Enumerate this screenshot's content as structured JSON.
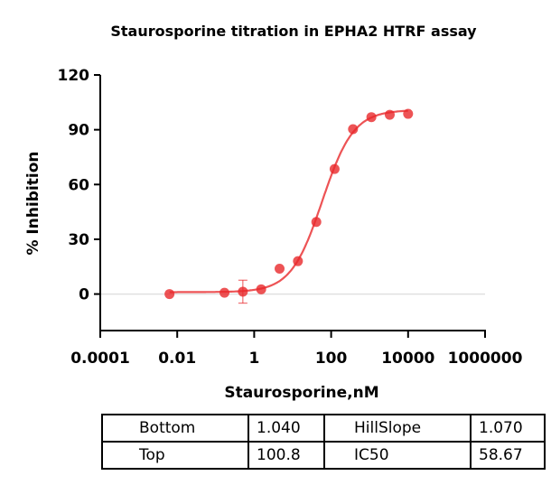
{
  "chart_data": {
    "type": "scatter",
    "title": "Staurosporine titration in EPHA2 HTRF assay",
    "xlabel": "Staurosporine,nM",
    "ylabel": "% Inhibition",
    "xscale": "log",
    "xlim": [
      0.0001,
      1000000
    ],
    "ylim": [
      -20,
      120
    ],
    "xticks": [
      "0.0001",
      "0.01",
      "1",
      "100",
      "10000",
      "1000000"
    ],
    "yticks": [
      "0",
      "30",
      "60",
      "90",
      "120"
    ],
    "grid": false,
    "color": "#e8282b",
    "points": [
      {
        "x": 0.0063,
        "y": 0
      },
      {
        "x": 0.169,
        "y": 0.7
      },
      {
        "x": 0.508,
        "y": 1.3,
        "err": 6.3
      },
      {
        "x": 1.52,
        "y": 2.6
      },
      {
        "x": 4.57,
        "y": 13.9
      },
      {
        "x": 13.7,
        "y": 18
      },
      {
        "x": 41.2,
        "y": 39.5
      },
      {
        "x": 123,
        "y": 68.5
      },
      {
        "x": 370,
        "y": 90.3
      },
      {
        "x": 1111,
        "y": 96.9
      },
      {
        "x": 3333,
        "y": 98.2
      },
      {
        "x": 10000,
        "y": 98.7
      }
    ],
    "fit": {
      "bottom": 1.04,
      "top": 100.8,
      "hillslope": 1.07,
      "ic50": 58.67
    }
  },
  "table": [
    [
      "Bottom",
      "1.040",
      "HillSlope",
      "1.070"
    ],
    [
      "Top",
      "100.8",
      "IC50",
      "58.67"
    ]
  ]
}
